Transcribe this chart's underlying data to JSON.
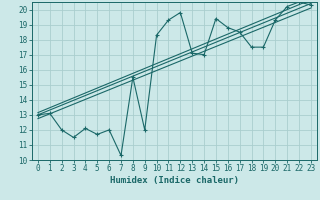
{
  "title": "",
  "xlabel": "Humidex (Indice chaleur)",
  "bg_color": "#cce8e8",
  "grid_color": "#aacece",
  "line_color": "#1a6868",
  "xlim": [
    -0.5,
    23.5
  ],
  "ylim": [
    10,
    20.5
  ],
  "xticks": [
    0,
    1,
    2,
    3,
    4,
    5,
    6,
    7,
    8,
    9,
    10,
    11,
    12,
    13,
    14,
    15,
    16,
    17,
    18,
    19,
    20,
    21,
    22,
    23
  ],
  "yticks": [
    10,
    11,
    12,
    13,
    14,
    15,
    16,
    17,
    18,
    19,
    20
  ],
  "data_line_x": [
    0,
    1,
    2,
    3,
    4,
    5,
    6,
    7,
    8,
    9,
    10,
    11,
    12,
    13,
    14,
    15,
    16,
    17,
    18,
    19,
    20,
    21,
    22,
    23
  ],
  "data_line_y": [
    13.0,
    13.1,
    12.0,
    11.5,
    12.1,
    11.7,
    12.0,
    10.3,
    15.5,
    12.0,
    18.3,
    19.3,
    19.8,
    17.1,
    17.0,
    19.4,
    18.8,
    18.5,
    17.5,
    17.5,
    19.3,
    20.2,
    20.5,
    20.3
  ],
  "trend1_x": [
    0,
    23
  ],
  "trend1_y": [
    13.0,
    20.4
  ],
  "trend2_x": [
    0,
    23
  ],
  "trend2_y": [
    13.15,
    20.65
  ],
  "trend3_x": [
    0,
    23
  ],
  "trend3_y": [
    12.75,
    20.1
  ],
  "tick_fontsize": 5.5,
  "xlabel_fontsize": 6.5,
  "linewidth": 0.8,
  "markersize": 2.5
}
